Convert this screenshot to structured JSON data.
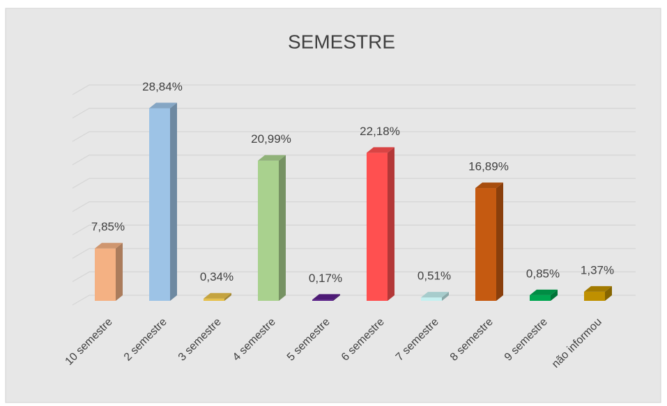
{
  "chart_data": {
    "type": "bar3d",
    "title": "SEMESTRE",
    "categories": [
      "10 semestre",
      "2 semestre",
      "3 semestre",
      "4 semestre",
      "5 semestre",
      "6 semestre",
      "7 semestre",
      "8 semestre",
      "9 semestre",
      "não informou"
    ],
    "values": [
      7.85,
      28.84,
      0.34,
      20.99,
      0.17,
      22.18,
      0.51,
      16.89,
      0.85,
      1.37
    ],
    "value_labels": [
      "7,85%",
      "28,84%",
      "0,34%",
      "20,99%",
      "0,17%",
      "22,18%",
      "0,51%",
      "16,89%",
      "0,85%",
      "1,37%"
    ],
    "colors": [
      "#f4b183",
      "#9dc3e6",
      "#e6c04a",
      "#a9d18e",
      "#5b1f8a",
      "#ff5050",
      "#c5f0f0",
      "#c55a11",
      "#00a650",
      "#bf9000"
    ],
    "ylim": [
      0,
      31.5
    ],
    "yticks": [
      0,
      3.5,
      7,
      10.5,
      14,
      17.5,
      21,
      24.5,
      28,
      31.5
    ],
    "grid": true
  }
}
